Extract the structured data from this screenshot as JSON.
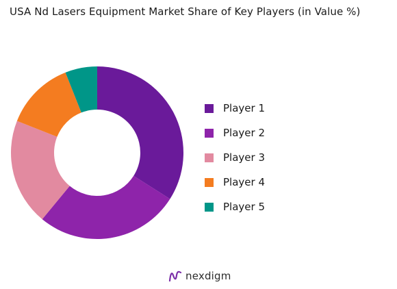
{
  "chart_data": {
    "type": "pie",
    "title": "USA Nd Lasers Equipment Market Share of Key Players (in Value %)",
    "labels": [
      "Player 1",
      "Player 2",
      "Player 3",
      "Player 4",
      "Player 5"
    ],
    "values": [
      34,
      27,
      20,
      13,
      6
    ],
    "colors": [
      "#6a1a9a",
      "#8e24aa",
      "#e28aa0",
      "#f47c20",
      "#009688"
    ],
    "legend_position": "right",
    "donut": true
  },
  "brand": {
    "name": "nexdigm",
    "logo_color": "#7b2fa8"
  }
}
